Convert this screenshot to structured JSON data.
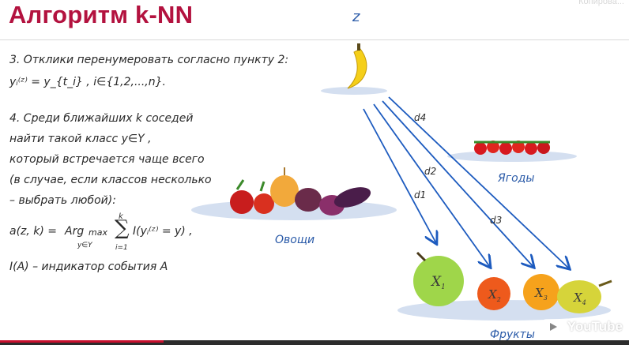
{
  "slide": {
    "title": "Алгоритм k-NN",
    "watermark": "Копирова...",
    "text_lines": [
      "3. Отклики перенумеровать согласно пункту 2:",
      "4. Среди ближайших k соседей",
      "найти такой класс y∈Y ,",
      "который встречается чаще всего",
      "(в случае, если классов несколько",
      "– выбрать любой):",
      "I(A) – индикатор события A"
    ],
    "formula_response": "yᵢ⁽ᶻ⁾ = y_{t_i} ,  i∈{1,2,...,n}.",
    "formula_a_prefix": "a(z, k) = ",
    "formula_arg": "Arg",
    "formula_max": "max",
    "formula_under": "y∈Y",
    "formula_sum_top": "k",
    "formula_sum_bottom": "i=1",
    "formula_body": "I(yᵢ⁽ᶻ⁾ = y) ,"
  },
  "diagram": {
    "query_label": "z",
    "distance_labels": [
      "d4",
      "d2",
      "d1",
      "d3"
    ],
    "groups": {
      "berries": "Ягоды",
      "vegetables": "Овощи",
      "fruits": "Фрукты"
    },
    "fruit_labels": [
      "X1",
      "X2",
      "X3",
      "X4"
    ],
    "arrow_color": "#1d5bbf"
  },
  "player": {
    "logo": "YouTube",
    "progress_fraction": 0.26
  }
}
